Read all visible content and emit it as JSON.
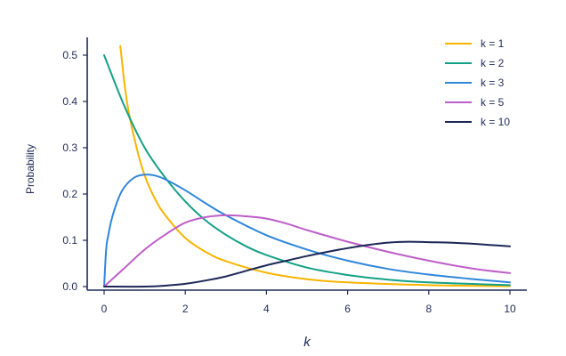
{
  "chart_data": {
    "type": "line",
    "xlabel": "k",
    "ylabel": "Probability",
    "xlim": [
      0,
      10
    ],
    "ylim": [
      0,
      0.5
    ],
    "x_ticks": [
      0,
      2,
      4,
      6,
      8,
      10
    ],
    "x_tick_labels": [
      "0",
      "2",
      "4",
      "6",
      "8",
      "10"
    ],
    "y_ticks": [
      0,
      0.1,
      0.2,
      0.3,
      0.4,
      0.5
    ],
    "y_tick_labels": [
      "0.0",
      "0.1",
      "0.2",
      "0.3",
      "0.4",
      "0.5"
    ],
    "grid": false,
    "legend_position": "top-right",
    "series": [
      {
        "name": "k = 1",
        "color": "#f7b500",
        "x": [
          0.4,
          0.5,
          0.6,
          0.8,
          1.0,
          1.25,
          1.5,
          2.0,
          2.5,
          3.0,
          4.0,
          5.0,
          6.0,
          8.0,
          10.0
        ],
        "y": [
          0.52,
          0.44,
          0.38,
          0.3,
          0.24,
          0.19,
          0.155,
          0.105,
          0.075,
          0.055,
          0.03,
          0.016,
          0.009,
          0.003,
          0.001
        ]
      },
      {
        "name": "k = 2",
        "color": "#14a085",
        "x": [
          0,
          0.5,
          1.0,
          1.5,
          2.0,
          2.5,
          3.0,
          3.5,
          4.0,
          5.0,
          6.0,
          7.0,
          8.0,
          9.0,
          10.0
        ],
        "y": [
          0.5,
          0.39,
          0.3,
          0.236,
          0.184,
          0.143,
          0.112,
          0.087,
          0.068,
          0.041,
          0.025,
          0.015,
          0.009,
          0.006,
          0.003
        ]
      },
      {
        "name": "k = 3",
        "color": "#2f86d9",
        "x": [
          0,
          0.05,
          0.1,
          0.2,
          0.35,
          0.5,
          0.75,
          1.0,
          1.25,
          1.5,
          2.0,
          2.5,
          3.0,
          4.0,
          5.0,
          6.0,
          7.0,
          8.0,
          9.0,
          10.0
        ],
        "y": [
          0,
          0.08,
          0.11,
          0.15,
          0.19,
          0.215,
          0.236,
          0.242,
          0.24,
          0.232,
          0.208,
          0.18,
          0.154,
          0.111,
          0.08,
          0.056,
          0.038,
          0.026,
          0.017,
          0.009
        ]
      },
      {
        "name": "k = 5",
        "color": "#bd5ec8",
        "x": [
          0,
          0.5,
          1.0,
          1.5,
          2.0,
          2.5,
          3.0,
          3.5,
          4.0,
          4.5,
          5.0,
          6.0,
          7.0,
          8.0,
          9.0,
          10.0
        ],
        "y": [
          0,
          0.04,
          0.08,
          0.112,
          0.138,
          0.15,
          0.154,
          0.152,
          0.147,
          0.136,
          0.122,
          0.097,
          0.075,
          0.056,
          0.04,
          0.029
        ]
      },
      {
        "name": "k = 10",
        "color": "#1c2757",
        "x": [
          0,
          1.0,
          1.5,
          2.0,
          2.5,
          3.0,
          3.5,
          4.0,
          4.5,
          5.0,
          5.5,
          6.0,
          6.5,
          7.0,
          7.5,
          8.0,
          8.5,
          9.0,
          9.5,
          10.0
        ],
        "y": [
          0,
          0,
          0.002,
          0.006,
          0.013,
          0.022,
          0.034,
          0.046,
          0.056,
          0.066,
          0.075,
          0.083,
          0.09,
          0.095,
          0.097,
          0.096,
          0.095,
          0.093,
          0.09,
          0.087
        ]
      }
    ]
  }
}
